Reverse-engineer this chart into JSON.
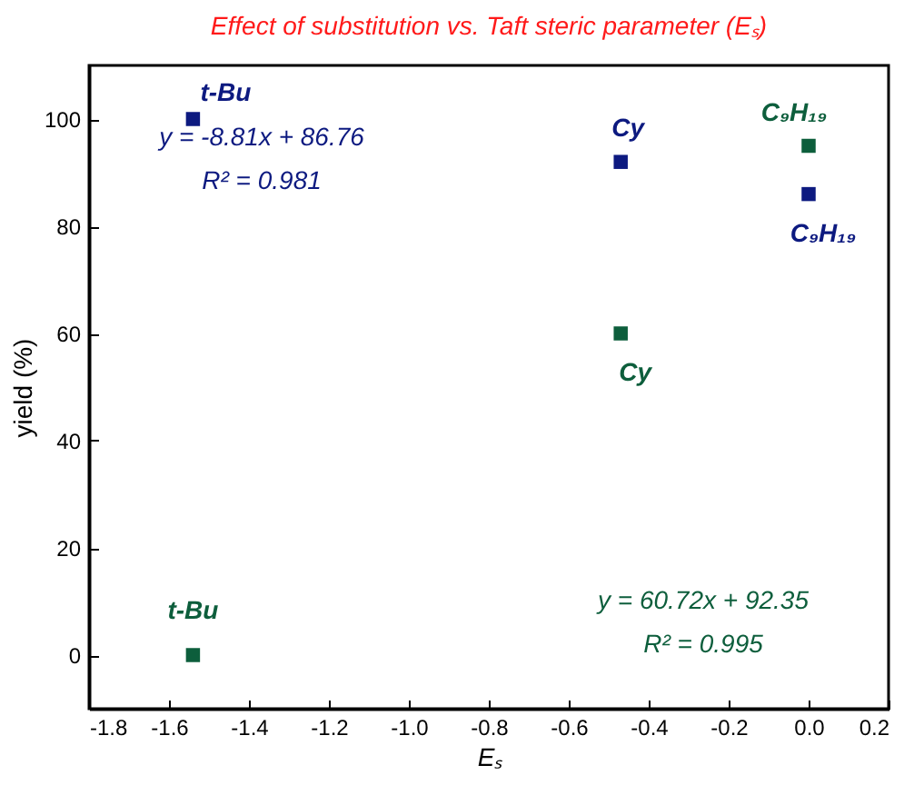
{
  "chart_data": {
    "type": "scatter",
    "title": "Effect of substitution vs. Taft steric parameter (Eₛ)",
    "xlabel": "Eₛ",
    "ylabel": "yield (%)",
    "xlim": [
      -1.8,
      0.2
    ],
    "xticks": [
      {
        "value": -1.8,
        "label": "-1.8"
      },
      {
        "value": -1.6,
        "label": "-1.6"
      },
      {
        "value": -1.4,
        "label": "-1.4"
      },
      {
        "value": -1.2,
        "label": "-1.2"
      },
      {
        "value": -1.0,
        "label": "-1.0"
      },
      {
        "value": -0.8,
        "label": "-0.8"
      },
      {
        "value": -0.6,
        "label": "-0.6"
      },
      {
        "value": -0.4,
        "label": "-0.4"
      },
      {
        "value": -0.2,
        "label": "-0.2"
      },
      {
        "value": 0,
        "label": "0.0"
      },
      {
        "value": 0.2,
        "label": "0.2"
      }
    ],
    "ylim": [
      -10,
      110
    ],
    "yticks": [
      0,
      20,
      40,
      60,
      80,
      100
    ],
    "series": [
      {
        "color": "#0d1a80",
        "x": [
          -1.54,
          -0.47,
          0
        ],
        "values": [
          100,
          92,
          86
        ]
      },
      {
        "color": "#0d5e3c",
        "x": [
          -1.54,
          -0.47,
          0
        ],
        "values": [
          0,
          60,
          95
        ]
      }
    ],
    "marker": "square",
    "grid": false,
    "legend": false,
    "annotations": [
      {
        "text": "t-Bu",
        "x": -1.54,
        "y": 100
      },
      {
        "text": "Cy",
        "x": -0.47,
        "y": 92
      },
      {
        "text": "C₉H₁₉",
        "x": 0,
        "y": 86
      },
      {
        "text": "t-Bu",
        "x": -1.54,
        "y": 0
      },
      {
        "text": "Cy",
        "x": -0.47,
        "y": 60
      },
      {
        "text": "C₉H₁₉",
        "x": 0,
        "y": 95
      },
      "y = -8.81x + 86.76",
      "R² = 0.981",
      "y = 60.72x + 92.35",
      "R² = 0.995"
    ]
  }
}
